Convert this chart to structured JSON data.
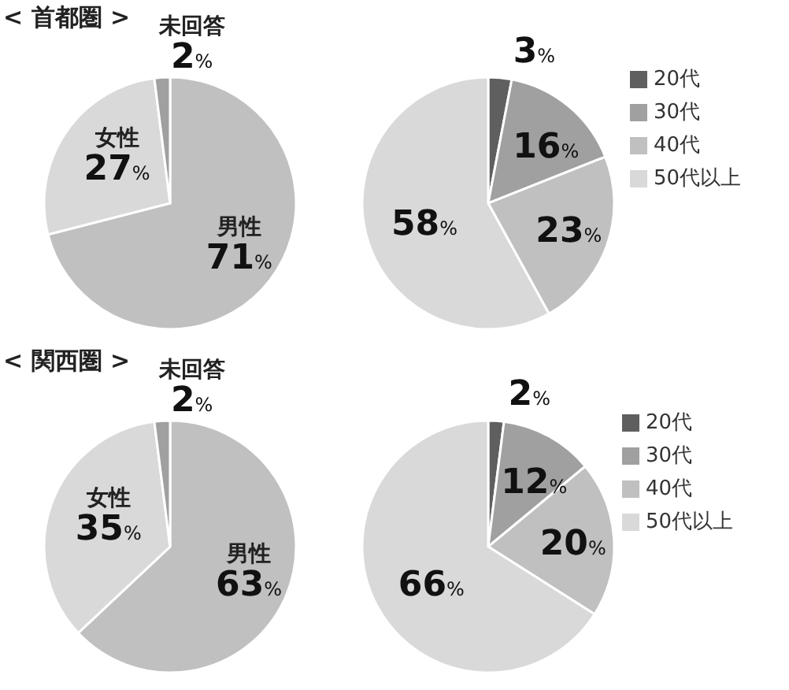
{
  "chart_data": [
    {
      "type": "pie",
      "title": "< 首都圏 >",
      "categories": [
        "男性",
        "女性",
        "未回答"
      ],
      "values": [
        71,
        27,
        2
      ],
      "colors": [
        "#c0c0c0",
        "#d9d9d9",
        "#a0a0a0"
      ],
      "value_labels": [
        "71%",
        "27%",
        "2%"
      ]
    },
    {
      "type": "pie",
      "categories": [
        "20代",
        "30代",
        "40代",
        "50代以上"
      ],
      "values": [
        3,
        16,
        23,
        58
      ],
      "colors": [
        "#5f5f5f",
        "#a0a0a0",
        "#c0c0c0",
        "#d9d9d9"
      ],
      "value_labels": [
        "3%",
        "16%",
        "23%",
        "58%"
      ],
      "legend": "top right"
    },
    {
      "type": "pie",
      "title": "< 関西圏 >",
      "categories": [
        "男性",
        "女性",
        "未回答"
      ],
      "values": [
        63,
        35,
        2
      ],
      "colors": [
        "#c0c0c0",
        "#d9d9d9",
        "#a0a0a0"
      ],
      "value_labels": [
        "63%",
        "35%",
        "2%"
      ]
    },
    {
      "type": "pie",
      "categories": [
        "20代",
        "30代",
        "40代",
        "50代以上"
      ],
      "values": [
        2,
        12,
        20,
        66
      ],
      "colors": [
        "#5f5f5f",
        "#a0a0a0",
        "#c0c0c0",
        "#d9d9d9"
      ],
      "value_labels": [
        "2%",
        "12%",
        "20%",
        "66%"
      ],
      "legend": "top right"
    }
  ]
}
